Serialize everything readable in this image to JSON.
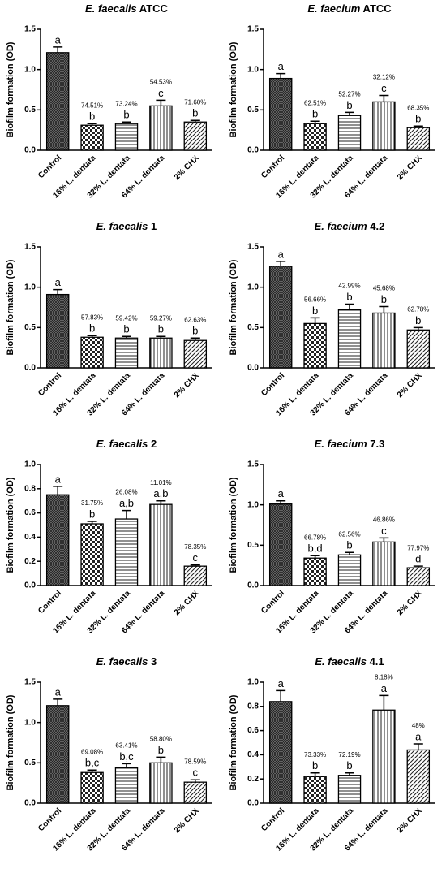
{
  "chart_data": [
    {
      "type": "bar",
      "title_species": "E. faecalis",
      "title_strain": "ATCC",
      "ylabel": "Biofilm formation (OD)",
      "categories": [
        "Control",
        "16% L. dentata",
        "32% L. dentata",
        "64% L. dentata",
        "2% CHX"
      ],
      "values": [
        1.21,
        0.31,
        0.33,
        0.55,
        0.35
      ],
      "errors": [
        0.07,
        0.02,
        0.02,
        0.07,
        0.02
      ],
      "letters": [
        "a",
        "b",
        "b",
        "c",
        "b"
      ],
      "percent_labels": [
        null,
        "74.51%",
        "73.24%",
        "54.53%",
        "71.60%"
      ],
      "ylim": [
        0,
        1.5
      ],
      "yticks": [
        {
          "value": 0,
          "label": "0.0"
        },
        0.5,
        {
          "value": 1,
          "label": "1.0"
        },
        1.5
      ]
    },
    {
      "type": "bar",
      "title_species": "E. faecium",
      "title_strain": "ATCC",
      "ylabel": "Biofilm formation (OD)",
      "categories": [
        "Control",
        "16% L. dentata",
        "32% L. dentata",
        "64% L. dentata",
        "2% CHX"
      ],
      "values": [
        0.89,
        0.33,
        0.43,
        0.6,
        0.28
      ],
      "errors": [
        0.06,
        0.03,
        0.04,
        0.08,
        0.02
      ],
      "letters": [
        "a",
        "b",
        "b",
        "c",
        "b"
      ],
      "percent_labels": [
        null,
        "62.51%",
        "52.27%",
        "32.12%",
        "68.35%"
      ],
      "ylim": [
        0,
        1.5
      ],
      "yticks": [
        {
          "value": 0,
          "label": "0.0"
        },
        0.5,
        {
          "value": 1,
          "label": "1.0"
        },
        1.5
      ]
    },
    {
      "type": "bar",
      "title_species": "E. faecalis",
      "title_strain": "1",
      "ylabel": "Biofilm formation (OD)",
      "categories": [
        "Control",
        "16% L. dentata",
        "32% L. dentata",
        "64% L. dentata",
        "2% CHX"
      ],
      "values": [
        0.91,
        0.38,
        0.37,
        0.37,
        0.34
      ],
      "errors": [
        0.06,
        0.02,
        0.02,
        0.02,
        0.03
      ],
      "letters": [
        "a",
        "b",
        "b",
        "b",
        "b"
      ],
      "percent_labels": [
        null,
        "57.83%",
        "59.42%",
        "59.27%",
        "62.63%"
      ],
      "ylim": [
        0,
        1.5
      ],
      "yticks": [
        {
          "value": 0,
          "label": "0.0"
        },
        0.5,
        {
          "value": 1,
          "label": "1.0"
        },
        1.5
      ]
    },
    {
      "type": "bar",
      "title_species": "E. faecium",
      "title_strain": "4.2",
      "ylabel": "Biofilm formation (OD)",
      "categories": [
        "Control",
        "16% L. dentata",
        "32% L. dentata",
        "64% L. dentata",
        "2% CHX"
      ],
      "values": [
        1.26,
        0.55,
        0.72,
        0.68,
        0.47
      ],
      "errors": [
        0.06,
        0.07,
        0.07,
        0.08,
        0.03
      ],
      "letters": [
        "a",
        "b",
        "b",
        "b",
        "b"
      ],
      "percent_labels": [
        null,
        "56.66%",
        "42.99%",
        "45.68%",
        "62.78%"
      ],
      "ylim": [
        0,
        1.5
      ],
      "yticks": [
        {
          "value": 0,
          "label": "0.0"
        },
        0.5,
        {
          "value": 1,
          "label": "1.0"
        },
        1.5
      ]
    },
    {
      "type": "bar",
      "title_species": "E. faecalis",
      "title_strain": "2",
      "ylabel": "Biofilm formation (OD)",
      "categories": [
        "Control",
        "16% L. dentata",
        "32% L. dentata",
        "64% L. dentata",
        "2% CHX"
      ],
      "values": [
        0.75,
        0.51,
        0.55,
        0.67,
        0.16
      ],
      "errors": [
        0.07,
        0.02,
        0.07,
        0.03,
        0.01
      ],
      "letters": [
        "a",
        "b",
        "a,b",
        "a,b",
        "c"
      ],
      "percent_labels": [
        null,
        "31.75%",
        "26.08%",
        "11.01%",
        "78.35%"
      ],
      "ylim": [
        0,
        1.0
      ],
      "yticks": [
        {
          "value": 0,
          "label": "0.0"
        },
        0.2,
        0.4,
        0.6,
        0.8,
        {
          "value": 1,
          "label": "1.0"
        }
      ]
    },
    {
      "type": "bar",
      "title_species": "E. faecium",
      "title_strain": "7.3",
      "ylabel": "Biofilm formation (OD)",
      "categories": [
        "Control",
        "16% L. dentata",
        "32% L. dentata",
        "64% L. dentata",
        "2% CHX"
      ],
      "values": [
        1.01,
        0.34,
        0.38,
        0.54,
        0.22
      ],
      "errors": [
        0.04,
        0.03,
        0.03,
        0.05,
        0.02
      ],
      "letters": [
        "a",
        "b,d",
        "b",
        "c",
        "d"
      ],
      "percent_labels": [
        null,
        "66.78%",
        "62.56%",
        "46.86%",
        "77.97%"
      ],
      "ylim": [
        0,
        1.5
      ],
      "yticks": [
        {
          "value": 0,
          "label": "0.0"
        },
        0.5,
        {
          "value": 1,
          "label": "1.0"
        },
        1.5
      ]
    },
    {
      "type": "bar",
      "title_species": "E. faecalis",
      "title_strain": "3",
      "ylabel": "Biofilm formation (OD)",
      "categories": [
        "Control",
        "16% L. dentata",
        "32% L. dentata",
        "64% L. dentata",
        "2% CHX"
      ],
      "values": [
        1.21,
        0.38,
        0.44,
        0.5,
        0.26
      ],
      "errors": [
        0.08,
        0.03,
        0.05,
        0.07,
        0.03
      ],
      "letters": [
        "a",
        "b,c",
        "b,c",
        "b",
        "c"
      ],
      "percent_labels": [
        null,
        "69.08%",
        "63.41%",
        "58.80%",
        "78.59%"
      ],
      "ylim": [
        0,
        1.5
      ],
      "yticks": [
        {
          "value": 0,
          "label": "0.0"
        },
        0.5,
        {
          "value": 1,
          "label": "1.0"
        },
        1.5
      ]
    },
    {
      "type": "bar",
      "title_species": "E. faecalis",
      "title_strain": "4.1",
      "ylabel": "Biofilm formation (OD)",
      "categories": [
        "Control",
        "16% L. dentata",
        "32% L. dentata",
        "64% L. dentata",
        "2% CHX"
      ],
      "values": [
        0.84,
        0.22,
        0.23,
        0.77,
        0.44
      ],
      "errors": [
        0.09,
        0.03,
        0.02,
        0.12,
        0.05
      ],
      "letters": [
        "a",
        "b",
        "b",
        "a",
        "a"
      ],
      "percent_labels": [
        null,
        "73.33%",
        "72.19%",
        "8.18%",
        "48%"
      ],
      "ylim": [
        0,
        1.0
      ],
      "yticks": [
        {
          "value": 0,
          "label": "0.0"
        },
        0.2,
        0.4,
        0.6,
        0.8,
        {
          "value": 1,
          "label": "1.0"
        }
      ]
    }
  ]
}
